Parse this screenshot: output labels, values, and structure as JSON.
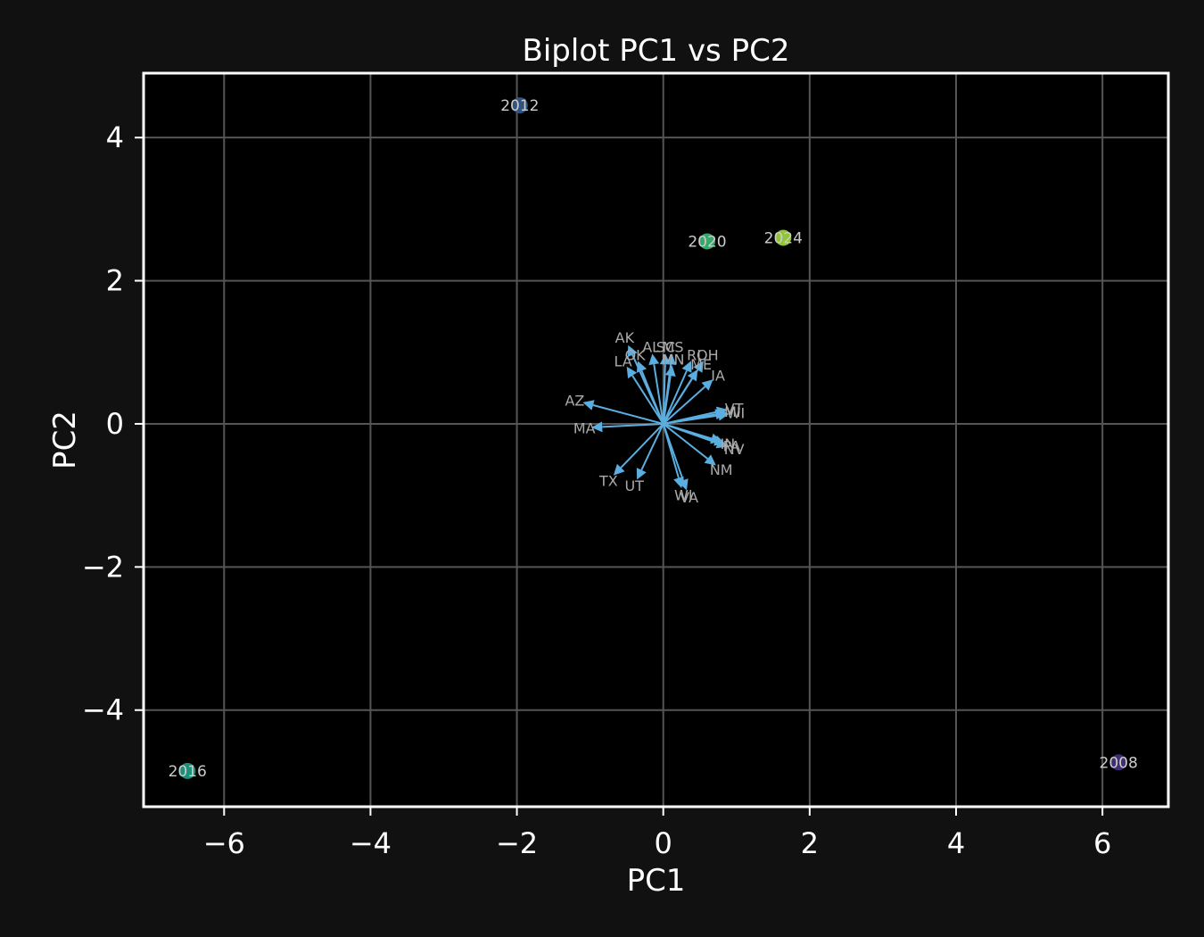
{
  "chart_data": {
    "type": "scatter",
    "title": "Biplot PC1 vs PC2",
    "xlabel": "PC1",
    "ylabel": "PC2",
    "xlim": [
      -7.1,
      6.9
    ],
    "ylim": [
      -5.35,
      4.9
    ],
    "xticks": [
      -6,
      -4,
      -2,
      0,
      2,
      4,
      6
    ],
    "yticks": [
      -4,
      -2,
      0,
      2,
      4
    ],
    "grid": true,
    "colors": {
      "background": "#111111",
      "plot_area": "#000000",
      "grid": "#555555",
      "frame": "#ffffff",
      "arrow": "#5aaee0"
    },
    "points": [
      {
        "label": "2008",
        "x": 6.22,
        "y": -4.73,
        "color": "#46337e"
      },
      {
        "label": "2012",
        "x": -1.96,
        "y": 4.45,
        "color": "#365c8d"
      },
      {
        "label": "2016",
        "x": -6.5,
        "y": -4.85,
        "color": "#1fa187"
      },
      {
        "label": "2020",
        "x": 0.6,
        "y": 2.55,
        "color": "#3cbb75"
      },
      {
        "label": "2024",
        "x": 1.64,
        "y": 2.6,
        "color": "#a0da39"
      }
    ],
    "loadings": [
      {
        "label": "AK",
        "x": -0.48,
        "y": 1.1
      },
      {
        "label": "AL",
        "x": -0.15,
        "y": 0.98
      },
      {
        "label": "SC",
        "x": 0.03,
        "y": 0.98
      },
      {
        "label": "MS",
        "x": 0.12,
        "y": 0.98
      },
      {
        "label": "OK",
        "x": -0.35,
        "y": 0.88
      },
      {
        "label": "LA",
        "x": -0.5,
        "y": 0.8
      },
      {
        "label": "MN",
        "x": 0.12,
        "y": 0.82
      },
      {
        "label": "RI",
        "x": 0.38,
        "y": 0.88
      },
      {
        "label": "OH",
        "x": 0.55,
        "y": 0.88
      },
      {
        "label": "ME",
        "x": 0.47,
        "y": 0.76
      },
      {
        "label": "IA",
        "x": 0.68,
        "y": 0.62
      },
      {
        "label": "AZ",
        "x": -1.1,
        "y": 0.3
      },
      {
        "label": "MA",
        "x": -0.98,
        "y": -0.05
      },
      {
        "label": "VT",
        "x": 0.88,
        "y": 0.2
      },
      {
        "label": "MI",
        "x": 0.86,
        "y": 0.16
      },
      {
        "label": "WI",
        "x": 0.9,
        "y": 0.14
      },
      {
        "label": "IN",
        "x": 0.8,
        "y": -0.25
      },
      {
        "label": "PA",
        "x": 0.85,
        "y": -0.28
      },
      {
        "label": "NV",
        "x": 0.88,
        "y": -0.32
      },
      {
        "label": "NM",
        "x": 0.72,
        "y": -0.58
      },
      {
        "label": "TX",
        "x": -0.68,
        "y": -0.72
      },
      {
        "label": "UT",
        "x": -0.36,
        "y": -0.78
      },
      {
        "label": "WI",
        "x": 0.25,
        "y": -0.9
      },
      {
        "label": "VA",
        "x": 0.32,
        "y": -0.93
      }
    ]
  }
}
